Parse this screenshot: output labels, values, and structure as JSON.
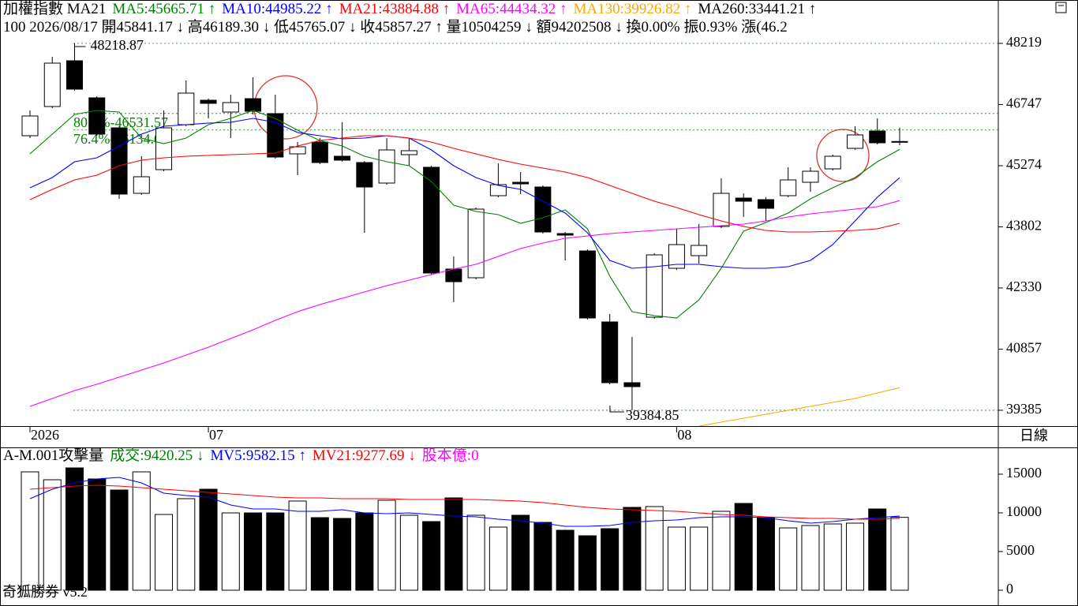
{
  "chart_data": [
    {
      "type": "candlestick",
      "title": "加權指數 MA21",
      "subtitle": "100 2026/08/17 開45841.17 ↓ 高46189.30 ↓ 低45765.07 ↓ 收45857.27 ↑ 量10504259 ↓ 額94202508 ↓ 換0.00% 振0.93% 漲(46.2",
      "categories": [
        "2026",
        null,
        null,
        null,
        null,
        null,
        null,
        null,
        "07",
        null,
        null,
        null,
        null,
        null,
        null,
        null,
        null,
        null,
        null,
        null,
        null,
        null,
        null,
        null,
        null,
        null,
        null,
        null,
        null,
        "08",
        null,
        null,
        null,
        null,
        null,
        null,
        null,
        null,
        null,
        null
      ],
      "open": [
        45996,
        46699,
        47801,
        46908,
        46186,
        44609,
        45179,
        46262,
        46851,
        46566,
        46889,
        46528,
        45559,
        45844,
        45502,
        45350,
        44856,
        45540,
        45236,
        42785,
        42576,
        44552,
        44875,
        44761,
        43640,
        43222,
        41512,
        40049,
        41626,
        42804,
        43108,
        43811,
        44495,
        44457,
        44552,
        44875,
        45198,
        45692,
        46110,
        45841.17
      ],
      "high": [
        46604,
        47896,
        48218.87,
        46946,
        46224,
        45502,
        46604,
        47326,
        46889,
        46984,
        47402,
        46984,
        45844,
        45939,
        46319,
        45388,
        45939,
        45939,
        45274,
        43089,
        44267,
        45331,
        45122,
        44799,
        43678,
        43260,
        41702,
        41151,
        43165,
        43754,
        43868,
        44970,
        44609,
        44514,
        45236,
        45236,
        45540,
        46224,
        46414,
        46189.3
      ],
      "low": [
        45939,
        46661,
        47079,
        45996,
        44476,
        44571,
        45141,
        46224,
        46414,
        45939,
        46509,
        45445,
        45046,
        45312,
        45369,
        43659,
        44818,
        45274,
        42652,
        41987,
        42538,
        44514,
        44590,
        43640,
        42994,
        41569,
        40011,
        39384.85,
        41588,
        42766,
        42918,
        43773,
        44039,
        43944,
        44514,
        44647,
        45160,
        45654,
        45787,
        45765.07
      ],
      "close": [
        46471,
        47744,
        47117,
        46034,
        44590,
        45008,
        46186,
        47022,
        46775,
        46794,
        46585,
        45483,
        45730,
        45350,
        45407,
        44761,
        45654,
        45635,
        42690,
        42481,
        44229,
        44818,
        44837,
        43678,
        43602,
        41607,
        40049,
        39954,
        43127,
        43374,
        43355,
        44609,
        44419,
        44248,
        44932,
        45141,
        45502,
        46015,
        45825,
        45857.27
      ],
      "up_color": "#ffffff",
      "down_color": "#000000",
      "series": [
        {
          "label": "MA5:45665.71 ↑",
          "color": "#008000",
          "values": [
            45559,
            46034,
            46509,
            46604,
            46566,
            45939,
            45806,
            45939,
            46262,
            46414,
            46604,
            46414,
            46129,
            45882,
            45749,
            45502,
            45369,
            45274,
            44894,
            44324,
            44172,
            44096,
            43887,
            44020,
            44210,
            43754,
            42614,
            41759,
            41664,
            41607,
            42044,
            42804,
            43697,
            43906,
            44134,
            44476,
            44742,
            44989,
            45369,
            45665.71
          ]
        },
        {
          "label": "MA10:44985.22 ↑",
          "color": "#0000ff",
          "values": [
            44742,
            44989,
            45369,
            45464,
            45749,
            46034,
            46224,
            46262,
            46300,
            46319,
            46414,
            46319,
            46072,
            45996,
            45920,
            45939,
            45996,
            45939,
            45654,
            45274,
            44989,
            44799,
            44704,
            44419,
            44134,
            43659,
            42994,
            42804,
            42842,
            42899,
            42899,
            42842,
            42804,
            42804,
            42842,
            42994,
            43374,
            43944,
            44514,
            44985.22
          ]
        },
        {
          "label": "MA21:43884.88 ↑",
          "color": "#ff0000",
          "values": [
            44457,
            44704,
            44932,
            45046,
            45274,
            45407,
            45464,
            45502,
            45521,
            45540,
            45559,
            45578,
            45749,
            45882,
            45939,
            45996,
            45996,
            45939,
            45844,
            45692,
            45559,
            45426,
            45312,
            45217,
            45122,
            44989,
            44799,
            44609,
            44419,
            44267,
            44096,
            43944,
            43811,
            43716,
            43678,
            43678,
            43697,
            43716,
            43754,
            43884.88
          ]
        },
        {
          "label": "MA65:44434.32 ↑",
          "color": "#ff00ff",
          "values": [
            39479,
            39669,
            39859,
            40011,
            40182,
            40353,
            40524,
            40714,
            40904,
            41113,
            41322,
            41550,
            41759,
            41930,
            42082,
            42234,
            42386,
            42519,
            42652,
            42785,
            42899,
            43089,
            43279,
            43412,
            43526,
            43583,
            43640,
            43678,
            43716,
            43754,
            43792,
            43830,
            43868,
            43944,
            44039,
            44115,
            44172,
            44229,
            44286,
            44434.32
          ]
        },
        {
          "label": "MA130:39926.82 ↑",
          "color": "#ffa500",
          "values": [
            null,
            null,
            null,
            null,
            null,
            null,
            null,
            null,
            null,
            null,
            null,
            null,
            null,
            null,
            null,
            null,
            null,
            null,
            null,
            null,
            null,
            null,
            null,
            null,
            null,
            null,
            null,
            null,
            null,
            null,
            39004,
            39099,
            39194,
            39289,
            39384,
            39479,
            39574,
            39669,
            39802,
            39926.82
          ]
        },
        {
          "label": "MA260:33441.21 ↑",
          "color": "#000000"
        }
      ],
      "fib_levels": [
        {
          "value": 46531.57,
          "label": "80.9%-46531.57"
        },
        {
          "value": 46134.04,
          "label": "76.4%-46134.04"
        }
      ],
      "fib_color": "#008000",
      "ylim": [
        39004,
        49226
      ],
      "yticks": [
        39385,
        40857,
        42330,
        43802,
        45274,
        46747,
        48219
      ]
    },
    {
      "type": "bar",
      "title": "A-M.001攻擊量",
      "label": "成交:9420.25 ↓",
      "label_color": "#008000",
      "values": [
        15300,
        14280,
        15810,
        14382,
        12954,
        15300,
        9792,
        11832,
        13056,
        9996,
        9996,
        9996,
        11526,
        9384,
        9282,
        9996,
        11628,
        9690,
        8874,
        11934,
        9690,
        8160,
        9690,
        8772,
        7752,
        7038,
        7956,
        10710,
        10812,
        8160,
        8160,
        10200,
        11220,
        9384,
        8058,
        8364,
        8568,
        8670,
        10506,
        9420.25
      ],
      "series": [
        {
          "label": "MV5:9582.15 ↑",
          "color": "#0000ff",
          "values": [
            11832,
            13056,
            13872,
            14382,
            14586,
            13872,
            12546,
            12240,
            12036,
            11016,
            10506,
            10506,
            10200,
            10200,
            10404,
            9996,
            9894,
            9996,
            9792,
            9588,
            9486,
            9180,
            8976,
            8670,
            8262,
            8262,
            8364,
            8772,
            8976,
            9078,
            9384,
            9486,
            9486,
            9384,
            8976,
            8670,
            8874,
            9180,
            9384,
            9582.15
          ]
        },
        {
          "label": "MV21:9277.69 ↓",
          "color": "#ff0000",
          "values": [
            13056,
            13260,
            13464,
            13566,
            13464,
            13260,
            13056,
            12852,
            12648,
            12444,
            12240,
            12036,
            11934,
            11934,
            11832,
            11832,
            11832,
            11730,
            11730,
            11730,
            11730,
            11628,
            11526,
            11322,
            11016,
            10710,
            10506,
            10404,
            10302,
            10200,
            9996,
            9792,
            9690,
            9486,
            9384,
            9282,
            9282,
            9180,
            9180,
            9277.69
          ]
        }
      ],
      "note": {
        "text": "股本億:0",
        "color": "#ff00ff"
      },
      "ylim": [
        -1734,
        18462
      ],
      "yticks": [
        0,
        5000,
        10000,
        15000
      ]
    }
  ],
  "period": "日線",
  "watermark": "奇狐勝券 v5.2"
}
